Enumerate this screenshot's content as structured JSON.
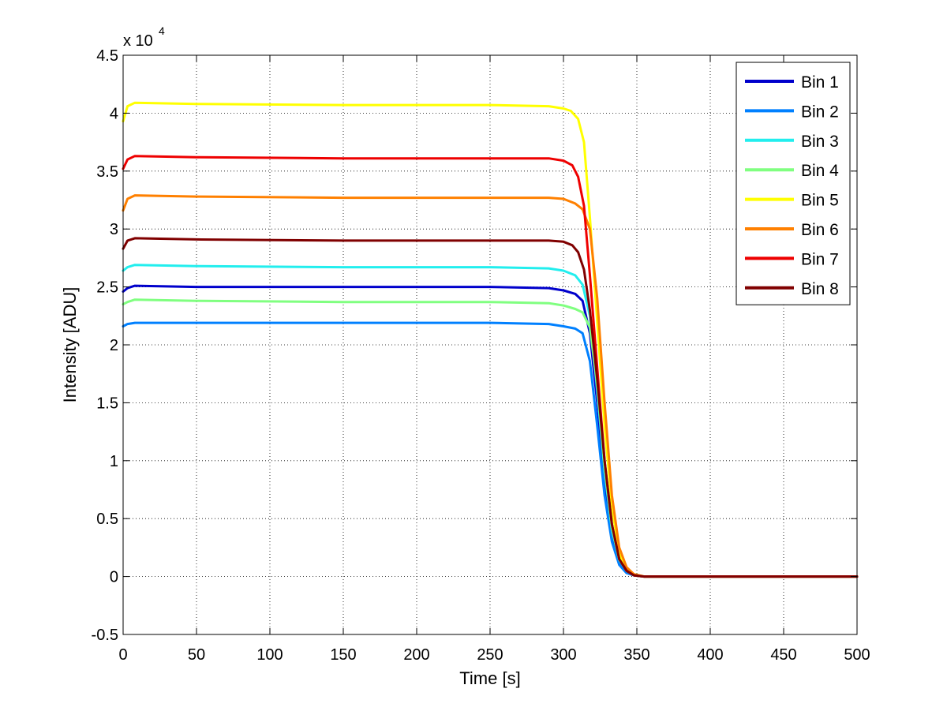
{
  "chart_data": {
    "type": "line",
    "xlabel": "Time [s]",
    "ylabel": "Intensity [ADU]",
    "y_multiplier": {
      "base": "x 10",
      "exponent": "4"
    },
    "xlim": [
      0,
      500
    ],
    "ylim": [
      -0.5,
      4.5
    ],
    "xticks": [
      0,
      50,
      100,
      150,
      200,
      250,
      300,
      350,
      400,
      450,
      500
    ],
    "xtick_labels": [
      "0",
      "50",
      "100",
      "150",
      "200",
      "250",
      "300",
      "350",
      "400",
      "450",
      "500"
    ],
    "yticks": [
      -0.5,
      0,
      0.5,
      1,
      1.5,
      2,
      2.5,
      3,
      3.5,
      4,
      4.5
    ],
    "ytick_labels": [
      "-0.5",
      "0",
      "0.5",
      "1",
      "1.5",
      "2",
      "2.5",
      "3",
      "3.5",
      "4",
      "4.5"
    ],
    "grid": true,
    "legend_position": "top-right",
    "series": [
      {
        "name": "Bin 1",
        "color": "#0000cc",
        "x": [
          0,
          3,
          8,
          50,
          150,
          250,
          290,
          300,
          308,
          313,
          318,
          323,
          328,
          333,
          338,
          343,
          348,
          355,
          365,
          380,
          500
        ],
        "values": [
          2.46,
          2.49,
          2.51,
          2.5,
          2.5,
          2.5,
          2.49,
          2.47,
          2.44,
          2.38,
          2.1,
          1.5,
          0.8,
          0.35,
          0.12,
          0.04,
          0.01,
          0.0,
          0.0,
          0.0,
          0.0
        ]
      },
      {
        "name": "Bin 2",
        "color": "#0080ff",
        "x": [
          0,
          3,
          8,
          50,
          150,
          250,
          290,
          300,
          308,
          313,
          318,
          323,
          328,
          333,
          338,
          343,
          348,
          355,
          365,
          380,
          500
        ],
        "values": [
          2.16,
          2.18,
          2.19,
          2.19,
          2.19,
          2.19,
          2.18,
          2.16,
          2.14,
          2.1,
          1.86,
          1.3,
          0.7,
          0.3,
          0.1,
          0.03,
          0.01,
          0.0,
          0.0,
          0.0,
          0.0
        ]
      },
      {
        "name": "Bin 3",
        "color": "#22eeee",
        "x": [
          0,
          3,
          8,
          50,
          150,
          250,
          290,
          300,
          308,
          313,
          318,
          323,
          328,
          333,
          338,
          343,
          348,
          355,
          365,
          380,
          500
        ],
        "values": [
          2.64,
          2.67,
          2.69,
          2.68,
          2.67,
          2.67,
          2.66,
          2.64,
          2.6,
          2.52,
          2.25,
          1.6,
          0.9,
          0.4,
          0.14,
          0.05,
          0.01,
          0.0,
          0.0,
          0.0,
          0.0
        ]
      },
      {
        "name": "Bin 4",
        "color": "#80ff80",
        "x": [
          0,
          3,
          8,
          50,
          150,
          250,
          290,
          300,
          308,
          313,
          318,
          323,
          328,
          333,
          338,
          343,
          348,
          355,
          365,
          380,
          500
        ],
        "values": [
          2.35,
          2.37,
          2.39,
          2.38,
          2.37,
          2.37,
          2.36,
          2.34,
          2.31,
          2.28,
          2.15,
          1.65,
          0.95,
          0.42,
          0.15,
          0.05,
          0.01,
          0.0,
          0.0,
          0.0,
          0.0
        ]
      },
      {
        "name": "Bin 5",
        "color": "#ffff00",
        "x": [
          0,
          3,
          8,
          50,
          150,
          250,
          290,
          300,
          305,
          310,
          314,
          318,
          323,
          328,
          333,
          338,
          343,
          348,
          355,
          365,
          380,
          500
        ],
        "values": [
          3.93,
          4.06,
          4.09,
          4.08,
          4.07,
          4.07,
          4.06,
          4.04,
          4.02,
          3.95,
          3.75,
          3.1,
          2.2,
          1.3,
          0.6,
          0.2,
          0.06,
          0.02,
          0.0,
          0.0,
          0.0,
          0.0
        ]
      },
      {
        "name": "Bin 6",
        "color": "#ff8000",
        "x": [
          0,
          3,
          8,
          50,
          150,
          250,
          290,
          300,
          308,
          313,
          318,
          323,
          328,
          333,
          338,
          343,
          348,
          355,
          365,
          380,
          500
        ],
        "values": [
          3.16,
          3.26,
          3.29,
          3.28,
          3.27,
          3.27,
          3.27,
          3.26,
          3.22,
          3.17,
          3.0,
          2.4,
          1.5,
          0.7,
          0.25,
          0.08,
          0.02,
          0.0,
          0.0,
          0.0,
          0.0
        ]
      },
      {
        "name": "Bin 7",
        "color": "#ee0000",
        "x": [
          0,
          3,
          8,
          50,
          150,
          250,
          290,
          300,
          306,
          310,
          314,
          318,
          323,
          328,
          333,
          338,
          343,
          348,
          355,
          365,
          380,
          500
        ],
        "values": [
          3.52,
          3.6,
          3.63,
          3.62,
          3.61,
          3.61,
          3.61,
          3.59,
          3.55,
          3.45,
          3.2,
          2.6,
          1.8,
          1.0,
          0.45,
          0.15,
          0.05,
          0.01,
          0.0,
          0.0,
          0.0,
          0.0
        ]
      },
      {
        "name": "Bin 8",
        "color": "#800000",
        "x": [
          0,
          3,
          8,
          50,
          150,
          250,
          290,
          300,
          306,
          310,
          314,
          318,
          323,
          328,
          333,
          338,
          343,
          348,
          355,
          365,
          380,
          500
        ],
        "values": [
          2.83,
          2.9,
          2.92,
          2.91,
          2.9,
          2.9,
          2.9,
          2.89,
          2.86,
          2.8,
          2.65,
          2.3,
          1.7,
          1.0,
          0.45,
          0.15,
          0.05,
          0.01,
          0.0,
          0.0,
          0.0,
          0.0
        ]
      }
    ]
  }
}
